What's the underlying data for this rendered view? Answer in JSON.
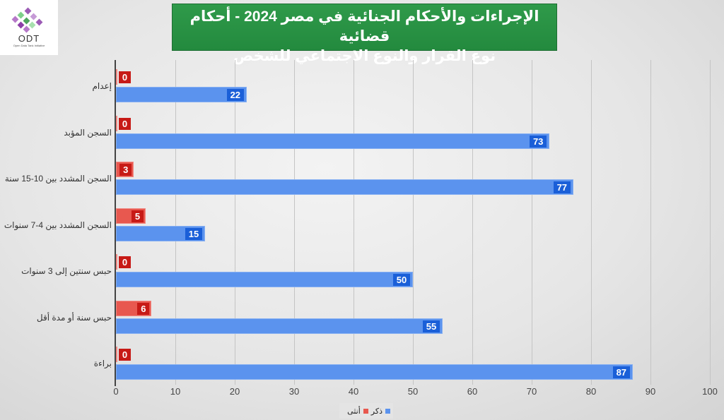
{
  "logo": {
    "name": "ODT",
    "subtitle": "Open Data Tank Initiative"
  },
  "title": {
    "line1": "الإجراءات والأحكام الجنائية في مصر 2024 - أحكام قضائية",
    "line2": "نوع القرار والنوع الاجتماعي للشخص"
  },
  "legend": {
    "male": "ذكر",
    "female": "أنثى"
  },
  "colors": {
    "male": "#5b93ee",
    "female": "#e8584f",
    "title_bg": "#2b9447"
  },
  "ticks": [
    "0",
    "10",
    "20",
    "30",
    "40",
    "50",
    "60",
    "70",
    "80",
    "90",
    "100"
  ],
  "categories": [
    {
      "label": "إعدام",
      "female": "0",
      "male": "22"
    },
    {
      "label": "السجن المؤبد",
      "female": "0",
      "male": "73"
    },
    {
      "label": "السجن المشدد بين 10-15 سنة",
      "female": "3",
      "male": "77"
    },
    {
      "label": "السجن المشدد بين 4-7 سنوات",
      "female": "5",
      "male": "15"
    },
    {
      "label": "حبس سنتين إلى 3 سنوات",
      "female": "0",
      "male": "50"
    },
    {
      "label": "حبس سنة أو مدة أقل",
      "female": "6",
      "male": "55"
    },
    {
      "label": "براءة",
      "female": "0",
      "male": "87"
    }
  ],
  "chart_data": {
    "type": "bar",
    "orientation": "horizontal",
    "title": "الإجراءات والأحكام الجنائية في مصر 2024 - أحكام قضائية — نوع القرار والنوع الاجتماعي للشخص",
    "categories": [
      "إعدام",
      "السجن المؤبد",
      "السجن المشدد بين 10-15 سنة",
      "السجن المشدد بين 4-7 سنوات",
      "حبس سنتين إلى 3 سنوات",
      "حبس سنة أو مدة أقل",
      "براءة"
    ],
    "series": [
      {
        "name": "أنثى",
        "color": "#e8584f",
        "values": [
          0,
          0,
          3,
          5,
          0,
          6,
          0
        ]
      },
      {
        "name": "ذكر",
        "color": "#5b93ee",
        "values": [
          22,
          73,
          77,
          15,
          50,
          55,
          87
        ]
      }
    ],
    "xlabel": "",
    "ylabel": "",
    "xlim": [
      0,
      100
    ],
    "xticks": [
      0,
      10,
      20,
      30,
      40,
      50,
      60,
      70,
      80,
      90,
      100
    ],
    "grid": true,
    "legend_position": "bottom"
  }
}
